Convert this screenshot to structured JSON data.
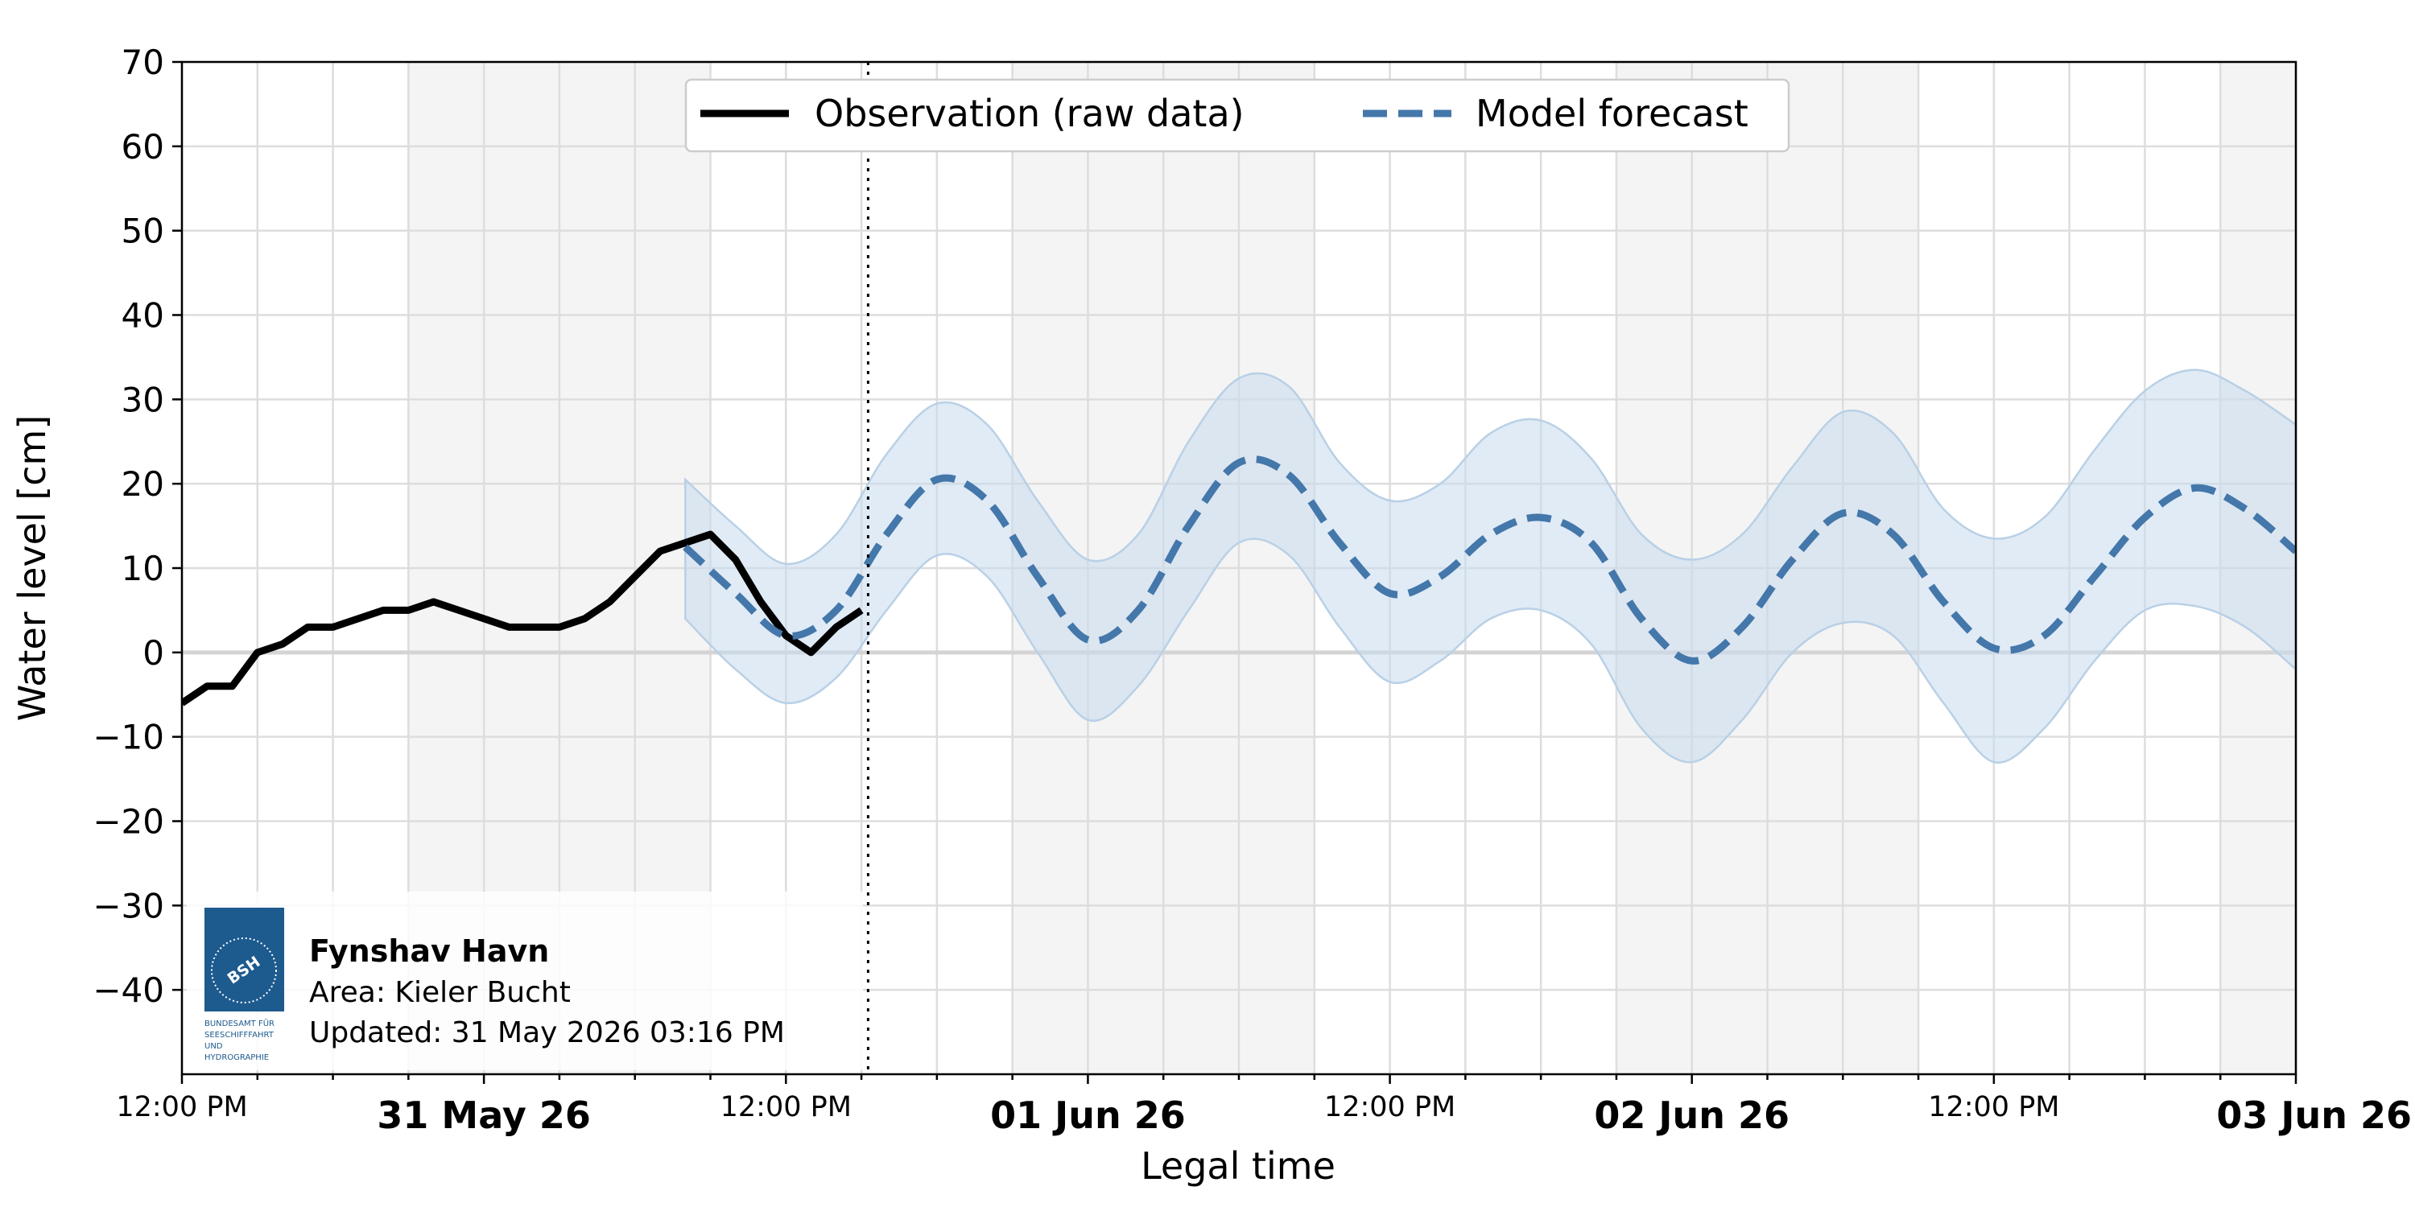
{
  "chart_data": {
    "type": "line",
    "xlabel": "Legal time",
    "ylabel": "Water level [cm]",
    "ylim": [
      -50,
      70
    ],
    "xlim": [
      "30 May 2026 12:00",
      "03 Jun 2026 00:00"
    ],
    "y_ticks": [
      70,
      60,
      50,
      40,
      30,
      20,
      10,
      0,
      -10,
      -20,
      -30,
      -40
    ],
    "y_tick_labels": [
      "70",
      "60",
      "50",
      "40",
      "30",
      "20",
      "10",
      "0",
      "−10",
      "−20",
      "−30",
      "−40"
    ],
    "x_tick_labels": [
      {
        "x": "30 May 2026 12:00",
        "label": "12:00 PM",
        "major": false
      },
      {
        "x": "31 May 2026 00:00",
        "label": "31 May 26",
        "major": true
      },
      {
        "x": "31 May 2026 12:00",
        "label": "12:00 PM",
        "major": false
      },
      {
        "x": "01 Jun 2026 00:00",
        "label": "01 Jun 26",
        "major": true
      },
      {
        "x": "01 Jun 2026 12:00",
        "label": "12:00 PM",
        "major": false
      },
      {
        "x": "02 Jun 2026 00:00",
        "label": "02 Jun 26",
        "major": true
      },
      {
        "x": "02 Jun 2026 12:00",
        "label": "12:00 PM",
        "major": false
      },
      {
        "x": "03 Jun 2026 00:00",
        "label": "03 Jun 26",
        "major": true
      }
    ],
    "grid": true,
    "legend_placement": "top-center",
    "now_line": "31 May 2026 15:16",
    "night_shading": [
      [
        "30 May 2026 21:00",
        "31 May 2026 09:00"
      ],
      [
        "31 May 2026 21:00",
        "01 Jun 2026 09:00"
      ],
      [
        "01 Jun 2026 21:00",
        "02 Jun 2026 09:00"
      ],
      [
        "02 Jun 2026 21:00",
        "03 Jun 2026 00:00"
      ]
    ],
    "series": [
      {
        "name": "Observation (raw data)",
        "style": "solid",
        "color": "#000000",
        "points": [
          [
            "30 May 2026 12:00",
            -6
          ],
          [
            "30 May 2026 12:30",
            -5
          ],
          [
            "30 May 2026 13:00",
            -4
          ],
          [
            "30 May 2026 14:00",
            -4
          ],
          [
            "30 May 2026 15:00",
            0
          ],
          [
            "30 May 2026 16:00",
            1
          ],
          [
            "30 May 2026 17:00",
            3
          ],
          [
            "30 May 2026 18:00",
            3
          ],
          [
            "30 May 2026 19:00",
            4
          ],
          [
            "30 May 2026 20:00",
            5
          ],
          [
            "30 May 2026 21:00",
            5
          ],
          [
            "30 May 2026 22:00",
            6
          ],
          [
            "30 May 2026 23:00",
            5
          ],
          [
            "31 May 2026 00:00",
            4
          ],
          [
            "31 May 2026 01:00",
            3
          ],
          [
            "31 May 2026 02:00",
            3
          ],
          [
            "31 May 2026 03:00",
            3
          ],
          [
            "31 May 2026 04:00",
            4
          ],
          [
            "31 May 2026 05:00",
            6
          ],
          [
            "31 May 2026 06:00",
            9
          ],
          [
            "31 May 2026 07:00",
            12
          ],
          [
            "31 May 2026 08:00",
            13
          ],
          [
            "31 May 2026 09:00",
            14
          ],
          [
            "31 May 2026 10:00",
            11
          ],
          [
            "31 May 2026 11:00",
            6
          ],
          [
            "31 May 2026 12:00",
            2
          ],
          [
            "31 May 2026 13:00",
            0
          ],
          [
            "31 May 2026 14:00",
            3
          ],
          [
            "31 May 2026 15:00",
            5
          ]
        ]
      },
      {
        "name": "Model forecast",
        "style": "dashed",
        "color": "#4477aa",
        "band_color": "#c6dbef",
        "points": [
          [
            "31 May 2026 08:00",
            12.5
          ],
          [
            "31 May 2026 10:00",
            7
          ],
          [
            "31 May 2026 12:00",
            2
          ],
          [
            "31 May 2026 14:00",
            5
          ],
          [
            "31 May 2026 16:00",
            14
          ],
          [
            "31 May 2026 18:00",
            20.5
          ],
          [
            "31 May 2026 20:00",
            18
          ],
          [
            "31 May 2026 22:00",
            9
          ],
          [
            "01 Jun 2026 00:00",
            1.5
          ],
          [
            "01 Jun 2026 02:00",
            5
          ],
          [
            "01 Jun 2026 04:00",
            15
          ],
          [
            "01 Jun 2026 06:00",
            22.5
          ],
          [
            "01 Jun 2026 08:00",
            21
          ],
          [
            "01 Jun 2026 10:00",
            13
          ],
          [
            "01 Jun 2026 12:00",
            7
          ],
          [
            "01 Jun 2026 14:00",
            9
          ],
          [
            "01 Jun 2026 16:00",
            14
          ],
          [
            "01 Jun 2026 18:00",
            16
          ],
          [
            "01 Jun 2026 20:00",
            13
          ],
          [
            "01 Jun 2026 22:00",
            4
          ],
          [
            "02 Jun 2026 00:00",
            -1
          ],
          [
            "02 Jun 2026 02:00",
            3
          ],
          [
            "02 Jun 2026 04:00",
            11
          ],
          [
            "02 Jun 2026 06:00",
            16.5
          ],
          [
            "02 Jun 2026 08:00",
            14
          ],
          [
            "02 Jun 2026 10:00",
            6
          ],
          [
            "02 Jun 2026 12:00",
            0.5
          ],
          [
            "02 Jun 2026 14:00",
            2
          ],
          [
            "02 Jun 2026 16:00",
            9
          ],
          [
            "02 Jun 2026 18:00",
            16
          ],
          [
            "02 Jun 2026 20:00",
            19.5
          ],
          [
            "02 Jun 2026 22:00",
            17
          ],
          [
            "03 Jun 2026 00:00",
            12
          ]
        ],
        "lower": [
          [
            "31 May 2026 08:00",
            4
          ],
          [
            "31 May 2026 10:00",
            -2
          ],
          [
            "31 May 2026 12:00",
            -6
          ],
          [
            "31 May 2026 14:00",
            -3
          ],
          [
            "31 May 2026 16:00",
            5
          ],
          [
            "31 May 2026 18:00",
            11.5
          ],
          [
            "31 May 2026 20:00",
            9
          ],
          [
            "31 May 2026 22:00",
            0
          ],
          [
            "01 Jun 2026 00:00",
            -8
          ],
          [
            "01 Jun 2026 02:00",
            -4
          ],
          [
            "01 Jun 2026 04:00",
            5
          ],
          [
            "01 Jun 2026 06:00",
            13
          ],
          [
            "01 Jun 2026 08:00",
            11.5
          ],
          [
            "01 Jun 2026 10:00",
            3
          ],
          [
            "01 Jun 2026 12:00",
            -3.5
          ],
          [
            "01 Jun 2026 14:00",
            -1
          ],
          [
            "01 Jun 2026 16:00",
            4
          ],
          [
            "01 Jun 2026 18:00",
            5
          ],
          [
            "01 Jun 2026 20:00",
            1
          ],
          [
            "01 Jun 2026 22:00",
            -9
          ],
          [
            "02 Jun 2026 00:00",
            -13
          ],
          [
            "02 Jun 2026 02:00",
            -8
          ],
          [
            "02 Jun 2026 04:00",
            0
          ],
          [
            "02 Jun 2026 06:00",
            3.5
          ],
          [
            "02 Jun 2026 08:00",
            2
          ],
          [
            "02 Jun 2026 10:00",
            -6
          ],
          [
            "02 Jun 2026 12:00",
            -13
          ],
          [
            "02 Jun 2026 14:00",
            -9
          ],
          [
            "02 Jun 2026 16:00",
            -1
          ],
          [
            "02 Jun 2026 18:00",
            5
          ],
          [
            "02 Jun 2026 20:00",
            5.5
          ],
          [
            "02 Jun 2026 22:00",
            3
          ],
          [
            "03 Jun 2026 00:00",
            -2
          ]
        ],
        "upper": [
          [
            "31 May 2026 08:00",
            20.5
          ],
          [
            "31 May 2026 10:00",
            15
          ],
          [
            "31 May 2026 12:00",
            10.5
          ],
          [
            "31 May 2026 14:00",
            14
          ],
          [
            "31 May 2026 16:00",
            23.5
          ],
          [
            "31 May 2026 18:00",
            29.5
          ],
          [
            "31 May 2026 20:00",
            27
          ],
          [
            "31 May 2026 22:00",
            18
          ],
          [
            "01 Jun 2026 00:00",
            11
          ],
          [
            "01 Jun 2026 02:00",
            14
          ],
          [
            "01 Jun 2026 04:00",
            25
          ],
          [
            "01 Jun 2026 06:00",
            32.5
          ],
          [
            "01 Jun 2026 08:00",
            31.5
          ],
          [
            "01 Jun 2026 10:00",
            22.5
          ],
          [
            "01 Jun 2026 12:00",
            18
          ],
          [
            "01 Jun 2026 14:00",
            20
          ],
          [
            "01 Jun 2026 16:00",
            26
          ],
          [
            "01 Jun 2026 18:00",
            27.5
          ],
          [
            "01 Jun 2026 20:00",
            23
          ],
          [
            "01 Jun 2026 22:00",
            14
          ],
          [
            "02 Jun 2026 00:00",
            11
          ],
          [
            "02 Jun 2026 02:00",
            14
          ],
          [
            "02 Jun 2026 04:00",
            22
          ],
          [
            "02 Jun 2026 06:00",
            28.5
          ],
          [
            "02 Jun 2026 08:00",
            26
          ],
          [
            "02 Jun 2026 10:00",
            17
          ],
          [
            "02 Jun 2026 12:00",
            13.5
          ],
          [
            "02 Jun 2026 14:00",
            16
          ],
          [
            "02 Jun 2026 16:00",
            24
          ],
          [
            "02 Jun 2026 18:00",
            31
          ],
          [
            "02 Jun 2026 20:00",
            33.5
          ],
          [
            "02 Jun 2026 22:00",
            31
          ],
          [
            "03 Jun 2026 00:00",
            27
          ]
        ]
      }
    ]
  },
  "info_box": {
    "station": "Fynshav Havn",
    "area": "Area: Kieler Bucht",
    "updated": "Updated: 31 May 2026 03:16 PM"
  },
  "logo": {
    "emblem_text": "BSH",
    "caption_lines": [
      "BUNDESAMT FÜR",
      "SEESCHIFFFAHRT",
      "UND",
      "HYDROGRAPHIE"
    ],
    "color": "#1d5a8e"
  }
}
